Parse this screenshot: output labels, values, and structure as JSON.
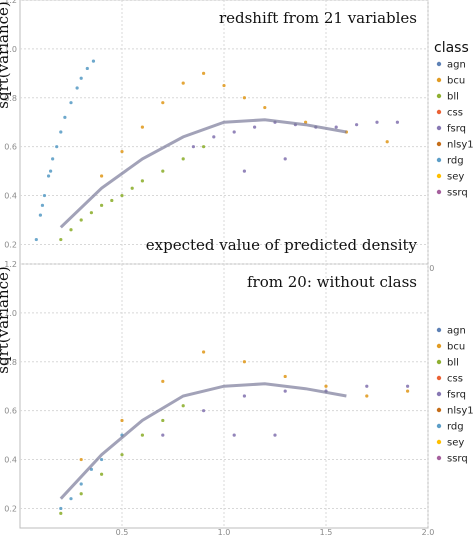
{
  "chart_data": [
    {
      "type": "scatter",
      "title": "redshift from 21 variables",
      "annotation": "expected value of predicted density",
      "xlabel": "",
      "ylabel": "sqrt(variance)",
      "xlim": [
        0.0,
        2.0
      ],
      "ylim": [
        0.12,
        1.2
      ],
      "xticks": [
        "0.5",
        "1.0",
        "1.5",
        "2.0"
      ],
      "yticks": [
        "0.2",
        "0.4",
        "0.6",
        "0.8",
        "1.0",
        "1.2"
      ],
      "grid": true,
      "legend_title": "class",
      "legend": "right",
      "classes": [
        "agn",
        "bcu",
        "bll",
        "css",
        "fsrq",
        "nlsy1",
        "rdg",
        "sey",
        "ssrq"
      ],
      "class_colors": [
        "#5e81b5",
        "#e19c24",
        "#8fb032",
        "#eb6235",
        "#8778b3",
        "#c56e1a",
        "#5d9ec7",
        "#ffbf00",
        "#a5609d"
      ],
      "series": [
        {
          "name": "rdg",
          "color": "#5d9ec7",
          "points": [
            [
              0.08,
              0.22
            ],
            [
              0.1,
              0.32
            ],
            [
              0.12,
              0.4
            ],
            [
              0.14,
              0.48
            ],
            [
              0.16,
              0.55
            ],
            [
              0.18,
              0.6
            ],
            [
              0.2,
              0.66
            ],
            [
              0.22,
              0.72
            ],
            [
              0.25,
              0.78
            ],
            [
              0.28,
              0.84
            ],
            [
              0.3,
              0.88
            ],
            [
              0.33,
              0.92
            ],
            [
              0.36,
              0.95
            ],
            [
              0.11,
              0.36
            ],
            [
              0.15,
              0.5
            ]
          ]
        },
        {
          "name": "bll",
          "color": "#8fb032",
          "points": [
            [
              0.2,
              0.22
            ],
            [
              0.25,
              0.26
            ],
            [
              0.3,
              0.3
            ],
            [
              0.35,
              0.33
            ],
            [
              0.4,
              0.36
            ],
            [
              0.45,
              0.38
            ],
            [
              0.5,
              0.4
            ],
            [
              0.55,
              0.43
            ],
            [
              0.6,
              0.46
            ],
            [
              0.7,
              0.5
            ],
            [
              0.8,
              0.55
            ],
            [
              0.9,
              0.6
            ]
          ]
        },
        {
          "name": "bcu",
          "color": "#e19c24",
          "points": [
            [
              0.4,
              0.48
            ],
            [
              0.5,
              0.58
            ],
            [
              0.6,
              0.68
            ],
            [
              0.7,
              0.78
            ],
            [
              0.8,
              0.86
            ],
            [
              0.9,
              0.9
            ],
            [
              1.0,
              0.85
            ],
            [
              1.1,
              0.8
            ],
            [
              1.2,
              0.76
            ],
            [
              1.4,
              0.7
            ],
            [
              1.6,
              0.66
            ],
            [
              1.8,
              0.62
            ]
          ]
        },
        {
          "name": "fsrq",
          "color": "#8778b3",
          "points": [
            [
              0.85,
              0.6
            ],
            [
              0.95,
              0.64
            ],
            [
              1.05,
              0.66
            ],
            [
              1.15,
              0.68
            ],
            [
              1.25,
              0.7
            ],
            [
              1.35,
              0.69
            ],
            [
              1.45,
              0.68
            ],
            [
              1.55,
              0.68
            ],
            [
              1.65,
              0.69
            ],
            [
              1.75,
              0.7
            ],
            [
              1.85,
              0.7
            ],
            [
              1.1,
              0.5
            ],
            [
              1.3,
              0.55
            ]
          ]
        }
      ],
      "trend": {
        "x": [
          0.2,
          0.4,
          0.6,
          0.8,
          1.0,
          1.2,
          1.4,
          1.6
        ],
        "y": [
          0.27,
          0.43,
          0.55,
          0.64,
          0.7,
          0.71,
          0.69,
          0.66
        ]
      }
    },
    {
      "type": "scatter",
      "title": "from 20: without class",
      "xlabel": "",
      "ylabel": "sqrt(variance)",
      "xlim": [
        0.0,
        2.0
      ],
      "ylim": [
        0.12,
        1.2
      ],
      "xticks": [
        "0.5",
        "1.0",
        "1.5",
        "2.0"
      ],
      "yticks": [
        "0.2",
        "0.4",
        "0.6",
        "0.8",
        "1.0",
        "1.2"
      ],
      "grid": true,
      "legend": "right",
      "classes": [
        "agn",
        "bcu",
        "bll",
        "css",
        "fsrq",
        "nlsy1",
        "rdg",
        "sey",
        "ssrq"
      ],
      "class_colors": [
        "#5e81b5",
        "#e19c24",
        "#8fb032",
        "#eb6235",
        "#8778b3",
        "#c56e1a",
        "#5d9ec7",
        "#ffbf00",
        "#a5609d"
      ],
      "series": [
        {
          "name": "rdg",
          "color": "#5d9ec7",
          "points": [
            [
              0.2,
              0.2
            ],
            [
              0.3,
              0.3
            ],
            [
              0.4,
              0.4
            ],
            [
              0.5,
              0.5
            ],
            [
              0.25,
              0.24
            ],
            [
              0.35,
              0.36
            ]
          ]
        },
        {
          "name": "bll",
          "color": "#8fb032",
          "points": [
            [
              0.2,
              0.18
            ],
            [
              0.3,
              0.26
            ],
            [
              0.4,
              0.34
            ],
            [
              0.5,
              0.42
            ],
            [
              0.6,
              0.5
            ],
            [
              0.7,
              0.56
            ],
            [
              0.8,
              0.62
            ]
          ]
        },
        {
          "name": "bcu",
          "color": "#e19c24",
          "points": [
            [
              0.3,
              0.4
            ],
            [
              0.5,
              0.56
            ],
            [
              0.7,
              0.72
            ],
            [
              0.9,
              0.84
            ],
            [
              1.1,
              0.8
            ],
            [
              1.3,
              0.74
            ],
            [
              1.5,
              0.7
            ],
            [
              1.7,
              0.66
            ],
            [
              1.9,
              0.68
            ]
          ]
        },
        {
          "name": "fsrq",
          "color": "#8778b3",
          "points": [
            [
              0.7,
              0.5
            ],
            [
              0.9,
              0.6
            ],
            [
              1.1,
              0.66
            ],
            [
              1.3,
              0.68
            ],
            [
              1.5,
              0.68
            ],
            [
              1.7,
              0.7
            ],
            [
              1.9,
              0.7
            ],
            [
              1.05,
              0.5
            ],
            [
              1.25,
              0.5
            ]
          ]
        }
      ],
      "trend": {
        "x": [
          0.2,
          0.4,
          0.6,
          0.8,
          1.0,
          1.2,
          1.4,
          1.6
        ],
        "y": [
          0.24,
          0.42,
          0.56,
          0.66,
          0.7,
          0.71,
          0.69,
          0.66
        ]
      }
    }
  ]
}
